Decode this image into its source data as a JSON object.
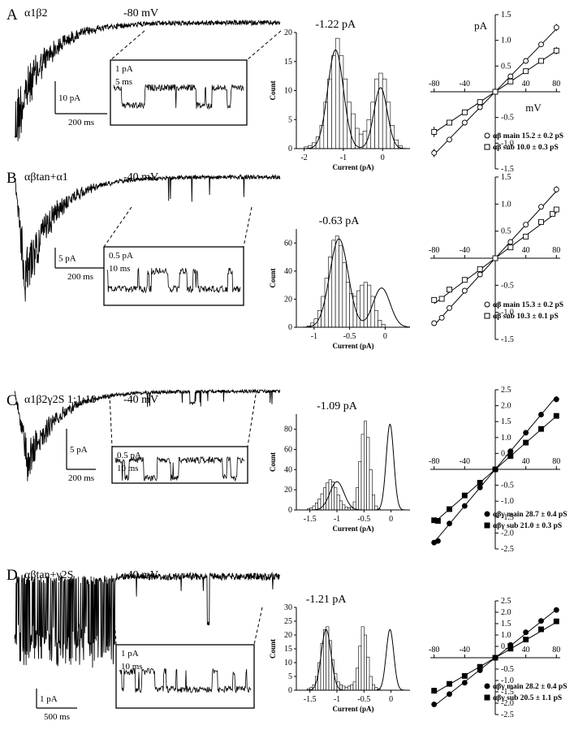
{
  "chart_data": [
    {
      "panel": "A",
      "type": "composite",
      "construct": "α1β2",
      "voltage": "-80 mV",
      "trace": {
        "scalebar_y": "10 pA",
        "scalebar_x": "200 ms",
        "inset_y": "1 pA",
        "inset_x": "5 ms"
      },
      "histogram": {
        "type": "bar",
        "peak_label": "-1.22 pA",
        "xlabel": "Current (pA)",
        "ylabel": "Count",
        "xlim": [
          -2.2,
          0.7
        ],
        "ylim": [
          0,
          20
        ],
        "xticks": [
          "-2",
          "-1",
          "0"
        ],
        "yticks": [
          "0",
          "5",
          "10",
          "15",
          "20"
        ],
        "bins": {
          "start": -2.0,
          "width": 0.1
        },
        "counts": [
          0.3,
          0.5,
          1,
          2,
          4,
          8,
          12,
          16,
          19,
          16,
          12,
          8,
          6,
          3.5,
          2.5,
          3,
          5,
          8,
          12,
          13,
          12,
          8,
          4,
          1.5,
          0.5
        ],
        "fits": [
          {
            "a": 17,
            "mu": -1.2,
            "sd": 0.2
          },
          {
            "a": 10.5,
            "mu": -0.05,
            "sd": 0.17
          }
        ]
      },
      "iv": {
        "type": "scatter",
        "xlabel": "mV",
        "ylabel": "pA",
        "xlim": [
          -85,
          85
        ],
        "ylim": [
          -1.5,
          1.5
        ],
        "yticks": [
          -1.5,
          -1.0,
          -0.5,
          0.5,
          1.0,
          1.5
        ],
        "xticks": [
          -80,
          -40,
          40,
          80
        ],
        "series": [
          {
            "name": "αβ main 15.2 ± 0.2 pS",
            "marker": "open-circle",
            "x": [
              -80,
              -60,
              -40,
              -20,
              0,
              20,
              40,
              60,
              80
            ],
            "y": [
              -1.19,
              -0.93,
              -0.6,
              -0.3,
              0,
              0.3,
              0.6,
              0.92,
              1.25
            ],
            "err": [
              0.08,
              0.03,
              0.02,
              0.02,
              0,
              0.02,
              0.02,
              0.05,
              0.07
            ]
          },
          {
            "name": "αβ sub  10.0 ± 0.3 pS",
            "marker": "open-square",
            "x": [
              -80,
              -60,
              -40,
              -20,
              0,
              20,
              40,
              60,
              80
            ],
            "y": [
              -0.78,
              -0.6,
              -0.4,
              -0.2,
              0,
              0.2,
              0.4,
              0.6,
              0.8
            ],
            "err": [
              0.1,
              0.03,
              0.02,
              0.02,
              0,
              0.02,
              0.02,
              0.04,
              0.07
            ]
          }
        ]
      }
    },
    {
      "panel": "B",
      "type": "composite",
      "construct": "αβtan+α1",
      "voltage": "-40 mV",
      "trace": {
        "scalebar_y": "5 pA",
        "scalebar_x": "200 ms",
        "inset_y": "0.5 pA",
        "inset_x": "10 ms"
      },
      "histogram": {
        "type": "bar",
        "peak_label": "-0.63 pA",
        "xlabel": "Current (pA)",
        "ylabel": "Count",
        "xlim": [
          -1.25,
          0.35
        ],
        "ylim": [
          0,
          70
        ],
        "xticks": [
          "-1",
          "-0.5",
          "0"
        ],
        "yticks": [
          "0",
          "20",
          "40",
          "60"
        ],
        "bins": {
          "start": -1.1,
          "width": 0.05
        },
        "counts": [
          1,
          3,
          6,
          12,
          22,
          35,
          50,
          62,
          65,
          58,
          46,
          32,
          24,
          22,
          26,
          30,
          32,
          30,
          22,
          12,
          5,
          2
        ],
        "fits": [
          {
            "a": 63,
            "mu": -0.65,
            "sd": 0.13
          },
          {
            "a": 28,
            "mu": -0.05,
            "sd": 0.12
          }
        ]
      },
      "iv": {
        "type": "scatter",
        "xlabel": "",
        "ylabel": "",
        "xlim": [
          -85,
          85
        ],
        "ylim": [
          -1.5,
          1.5
        ],
        "yticks": [
          -1.5,
          -1.0,
          -0.5,
          0.5,
          1.0,
          1.5
        ],
        "xticks": [
          -80,
          -40,
          40,
          80
        ],
        "series": [
          {
            "name": "αβ main 15.3 ± 0.2 pS",
            "marker": "open-circle",
            "x": [
              -80,
              -70,
              -60,
              -40,
              -20,
              0,
              20,
              40,
              60,
              80
            ],
            "y": [
              -1.2,
              -1.1,
              -0.92,
              -0.6,
              -0.3,
              0,
              0.3,
              0.62,
              0.95,
              1.27
            ],
            "err": [
              0.02,
              0.03,
              0.05,
              0.03,
              0.02,
              0,
              0.02,
              0.03,
              0.05,
              0.06
            ]
          },
          {
            "name": "αβ sub  10.3 ± 0.1 pS",
            "marker": "open-square",
            "x": [
              -80,
              -70,
              -60,
              -40,
              -20,
              0,
              20,
              40,
              60,
              75,
              80
            ],
            "y": [
              -0.77,
              -0.75,
              -0.58,
              -0.4,
              -0.2,
              0,
              0.2,
              0.4,
              0.67,
              0.82,
              0.9
            ],
            "err": [
              0.02,
              0.02,
              0.03,
              0.02,
              0.02,
              0,
              0.02,
              0.02,
              0.04,
              0.03,
              0.05
            ]
          }
        ]
      }
    },
    {
      "panel": "C",
      "type": "composite",
      "construct": "α1β2γ2S 1:1:10",
      "voltage": "-40 mV",
      "trace": {
        "scalebar_y": "5 pA",
        "scalebar_x": "200 ms",
        "inset_y": "0.5 pA",
        "inset_x": "10 ms"
      },
      "histogram": {
        "type": "bar",
        "peak_label": "-1.09 pA",
        "xlabel": "Current (pA)",
        "ylabel": "Count",
        "xlim": [
          -1.75,
          0.35
        ],
        "ylim": [
          0,
          95
        ],
        "xticks": [
          "-1.5",
          "-1",
          "-0.5",
          "0"
        ],
        "yticks": [
          "0",
          "20",
          "40",
          "60",
          "80"
        ],
        "bins": {
          "start": -1.55,
          "width": 0.05
        },
        "counts": [
          1,
          2,
          4,
          7,
          11,
          16,
          22,
          27,
          30,
          28,
          22,
          15,
          9,
          5,
          3,
          2,
          3,
          8,
          22,
          48,
          75,
          88,
          72,
          40,
          15,
          4,
          1
        ],
        "fits": [
          {
            "a": 28,
            "mu": -1.0,
            "sd": 0.13
          },
          {
            "a": 85,
            "mu": -0.02,
            "sd": 0.07
          }
        ]
      },
      "iv": {
        "type": "scatter",
        "xlabel": "",
        "ylabel": "",
        "xlim": [
          -85,
          85
        ],
        "ylim": [
          -2.5,
          2.5
        ],
        "yticks": [
          -2.5,
          -2.0,
          -1.5,
          -1.0,
          -0.5,
          0.5,
          1.0,
          1.5,
          2.0,
          2.5
        ],
        "xticks": [
          -80,
          -40,
          40,
          80
        ],
        "series": [
          {
            "name": "αβγ main 28.7 ± 0.4 pS",
            "marker": "filled-circle",
            "x": [
              -80,
              -75,
              -60,
              -40,
              -20,
              0,
              20,
              40,
              60,
              80
            ],
            "y": [
              -2.3,
              -2.25,
              -1.7,
              -1.15,
              -0.57,
              0,
              0.57,
              1.15,
              1.72,
              2.2
            ],
            "err": [
              0.04,
              0.03,
              0.07,
              0.03,
              0.03,
              0,
              0.03,
              0.03,
              0.04,
              0.09
            ]
          },
          {
            "name": "αβγ sub  21.0 ± 0.3 pS",
            "marker": "filled-square",
            "x": [
              -80,
              -75,
              -60,
              -40,
              -20,
              0,
              20,
              40,
              60,
              80
            ],
            "y": [
              -1.6,
              -1.62,
              -1.25,
              -0.82,
              -0.42,
              0,
              0.42,
              0.84,
              1.27,
              1.68
            ],
            "err": [
              0.03,
              0.03,
              0.03,
              0.03,
              0.02,
              0,
              0.02,
              0.03,
              0.03,
              0.04
            ]
          }
        ]
      }
    },
    {
      "panel": "D",
      "type": "composite",
      "construct": "αβtan+γ2S",
      "voltage": "-40 mV",
      "trace": {
        "scalebar_y": "1 pA",
        "scalebar_x": "500 ms",
        "inset_y": "1 pA",
        "inset_x": "10 ms"
      },
      "histogram": {
        "type": "bar",
        "peak_label": "-1.21 pA",
        "xlabel": "Current (pA)",
        "ylabel": "Count",
        "xlim": [
          -1.75,
          0.35
        ],
        "ylim": [
          0,
          30
        ],
        "xticks": [
          "-1.5",
          "-1",
          "-0.5",
          "0"
        ],
        "yticks": [
          "0",
          "5",
          "10",
          "15",
          "20",
          "25",
          "30"
        ],
        "bins": {
          "start": -1.55,
          "width": 0.05
        },
        "counts": [
          0.5,
          1,
          2,
          5,
          10,
          17,
          22,
          23,
          18,
          11,
          6,
          3,
          2,
          1.5,
          1,
          1.5,
          2,
          3,
          8,
          16,
          23,
          20,
          12,
          5,
          2,
          1,
          0.5
        ],
        "fits": [
          {
            "a": 22,
            "mu": -1.2,
            "sd": 0.09
          },
          {
            "a": 22,
            "mu": -0.02,
            "sd": 0.07
          }
        ]
      },
      "iv": {
        "type": "scatter",
        "xlabel": "",
        "ylabel": "",
        "xlim": [
          -85,
          85
        ],
        "ylim": [
          -2.5,
          2.5
        ],
        "yticks": [
          -2.5,
          -2.0,
          -1.5,
          -1.0,
          -0.5,
          0.5,
          1.0,
          1.5,
          2.0,
          2.5
        ],
        "xticks": [
          -80,
          -40,
          40,
          80
        ],
        "series": [
          {
            "name": "αβγ main 28.2 ± 0.4 pS",
            "marker": "filled-circle",
            "x": [
              -80,
              -60,
              -40,
              -20,
              0,
              20,
              40,
              60,
              80
            ],
            "y": [
              -2.05,
              -1.6,
              -1.1,
              -0.55,
              0,
              0.56,
              1.12,
              1.62,
              2.1
            ],
            "err": [
              0.03,
              0.03,
              0.03,
              0.03,
              0,
              0.03,
              0.03,
              0.03,
              0.03
            ]
          },
          {
            "name": "αβγ sub  20.5 ± 1.1 pS",
            "marker": "filled-square",
            "x": [
              -80,
              -60,
              -40,
              -20,
              0,
              20,
              40,
              60,
              80
            ],
            "y": [
              -1.45,
              -1.15,
              -0.8,
              -0.4,
              0,
              0.4,
              0.8,
              1.25,
              1.6
            ],
            "err": [
              0.13,
              0.04,
              0.03,
              0.03,
              0,
              0.03,
              0.03,
              0.03,
              0.04
            ]
          }
        ]
      }
    }
  ]
}
